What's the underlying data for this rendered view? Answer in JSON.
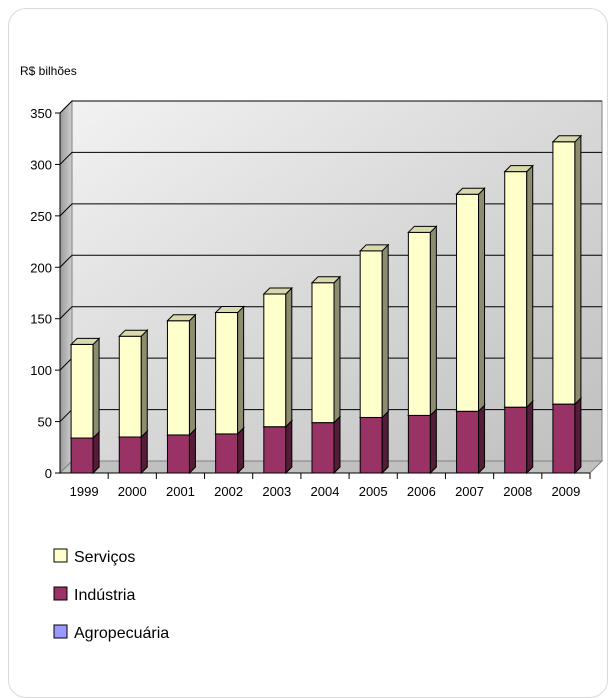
{
  "chart_data": {
    "type": "bar",
    "stacked": true,
    "three_d": true,
    "unit_label": "R$ bilhões",
    "categories": [
      "1999",
      "2000",
      "2001",
      "2002",
      "2003",
      "2004",
      "2005",
      "2006",
      "2007",
      "2008",
      "2009"
    ],
    "series": [
      {
        "name": "Agropecuária",
        "color": "#9999ff",
        "values": [
          0,
          0,
          0,
          0,
          0,
          0,
          0,
          0,
          0,
          0,
          0
        ]
      },
      {
        "name": "Indústria",
        "color": "#993366",
        "values": [
          34,
          35,
          37,
          38,
          45,
          49,
          54,
          56,
          60,
          64,
          67
        ]
      },
      {
        "name": "Serviços",
        "color": "#ffffcc",
        "values": [
          91,
          98,
          111,
          118,
          129,
          136,
          162,
          178,
          211,
          229,
          255
        ]
      }
    ],
    "yticks": [
      0,
      50,
      100,
      150,
      200,
      250,
      300,
      350
    ],
    "ylim": [
      0,
      350
    ],
    "grid": true,
    "legend_position": "bottom-left"
  }
}
